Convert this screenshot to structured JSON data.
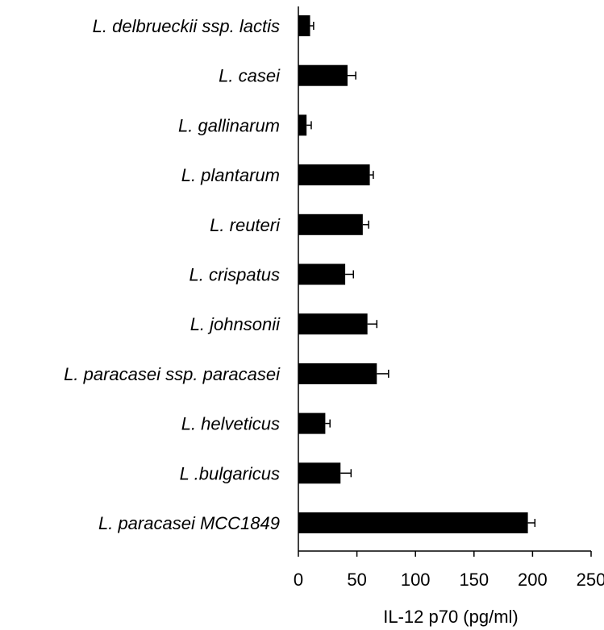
{
  "chart_data": {
    "type": "bar",
    "orientation": "horizontal",
    "categories": [
      "L. delbrueckii ssp. lactis",
      "L. casei",
      "L. gallinarum",
      "L. plantarum",
      "L. reuteri",
      "L. crispatus",
      "L. johnsonii",
      "L. paracasei ssp. paracasei",
      "L. helveticus",
      "L .bulgaricus",
      "L. paracasei MCC1849"
    ],
    "values": [
      10,
      42,
      7,
      61,
      55,
      40,
      59,
      67,
      23,
      36,
      196
    ],
    "errors": [
      3,
      7,
      4,
      3,
      5,
      7,
      8,
      10,
      4,
      9,
      6
    ],
    "title": "",
    "xlabel": "IL-12 p70 (pg/ml)",
    "ylabel": "",
    "xlim": [
      0,
      250
    ],
    "xticks": [
      0,
      50,
      100,
      150,
      200,
      250
    ],
    "grid": false,
    "legend": "none",
    "bar_color": "#000000"
  }
}
